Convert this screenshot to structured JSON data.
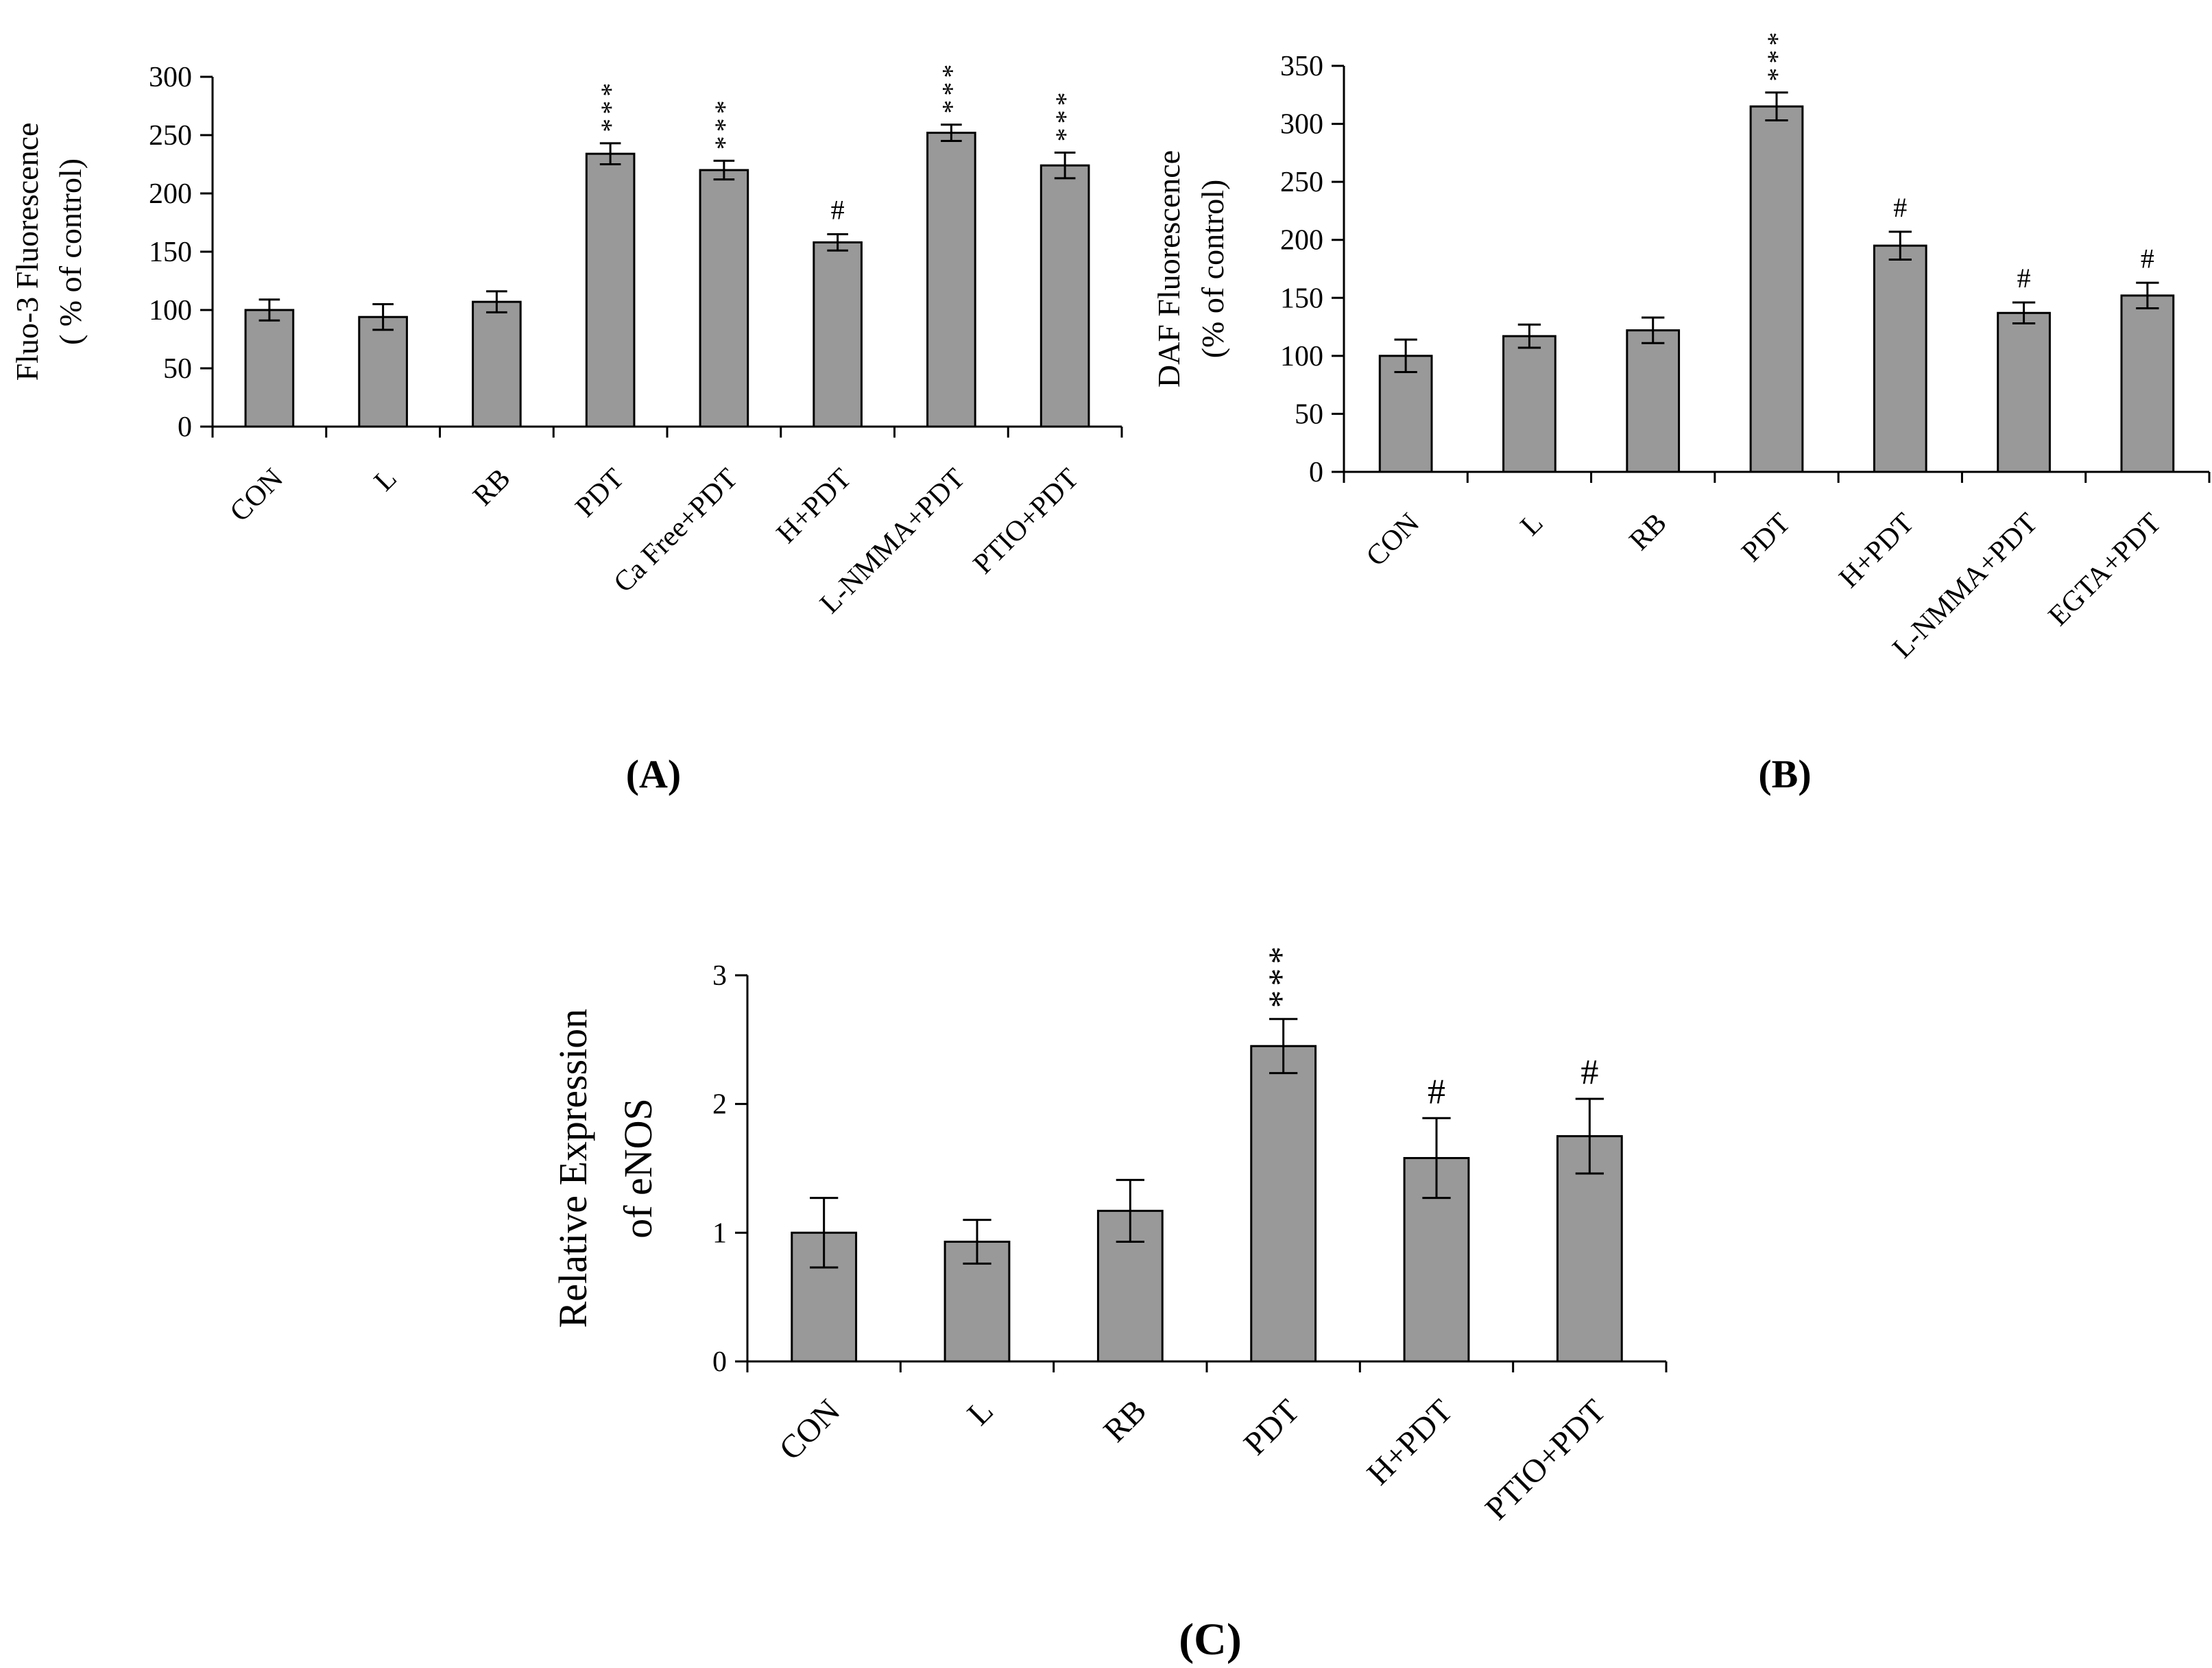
{
  "colors": {
    "bar": "#999999",
    "axis": "#000000",
    "background": "#ffffff"
  },
  "chart_data": [
    {
      "type": "bar",
      "panel": "(A)",
      "title": "",
      "xlabel": "",
      "ylabel_lines": [
        "Fluo-3 Fluorescence",
        "( % of control)"
      ],
      "ylim": [
        0,
        300
      ],
      "yticks": [
        "0",
        "50",
        "100",
        "150",
        "200",
        "250",
        "300"
      ],
      "categories": [
        "CON",
        "L",
        "RB",
        "PDT",
        "Ca Free+PDT",
        "H+PDT",
        "L-NMMA+PDT",
        "PTIO+PDT"
      ],
      "values": [
        100,
        94,
        107,
        234,
        220,
        158,
        252,
        224
      ],
      "errors": [
        9,
        11,
        9,
        9,
        8,
        7,
        7,
        11
      ],
      "significance": [
        "",
        "",
        "",
        "***",
        "***",
        "#",
        "***",
        "***"
      ]
    },
    {
      "type": "bar",
      "panel": "(B)",
      "title": "",
      "xlabel": "",
      "ylabel_lines": [
        "DAF Fluorescence",
        "(% of control)"
      ],
      "ylim": [
        0,
        350
      ],
      "yticks": [
        "0",
        "50",
        "100",
        "150",
        "200",
        "250",
        "300",
        "350"
      ],
      "categories": [
        "CON",
        "L",
        "RB",
        "PDT",
        "H+PDT",
        "L-NMMA+PDT",
        "EGTA+PDT"
      ],
      "values": [
        100,
        117,
        122,
        315,
        195,
        137,
        152
      ],
      "errors": [
        14,
        10,
        11,
        12,
        12,
        9,
        11
      ],
      "significance": [
        "",
        "",
        "",
        "***",
        "#",
        "#",
        "#"
      ]
    },
    {
      "type": "bar",
      "panel": "(C)",
      "title": "",
      "xlabel": "",
      "ylabel_lines": [
        "Relative Expression",
        "of eNOS"
      ],
      "ylim": [
        0,
        3
      ],
      "yticks": [
        "0",
        "1",
        "2",
        "3"
      ],
      "categories": [
        "CON",
        "L",
        "RB",
        "PDT",
        "H+PDT",
        "PTIO+PDT"
      ],
      "values": [
        1.0,
        0.93,
        1.17,
        2.45,
        1.58,
        1.75
      ],
      "errors": [
        0.27,
        0.17,
        0.24,
        0.21,
        0.31,
        0.29
      ],
      "significance": [
        "",
        "",
        "",
        "***",
        "#",
        "#"
      ]
    }
  ]
}
